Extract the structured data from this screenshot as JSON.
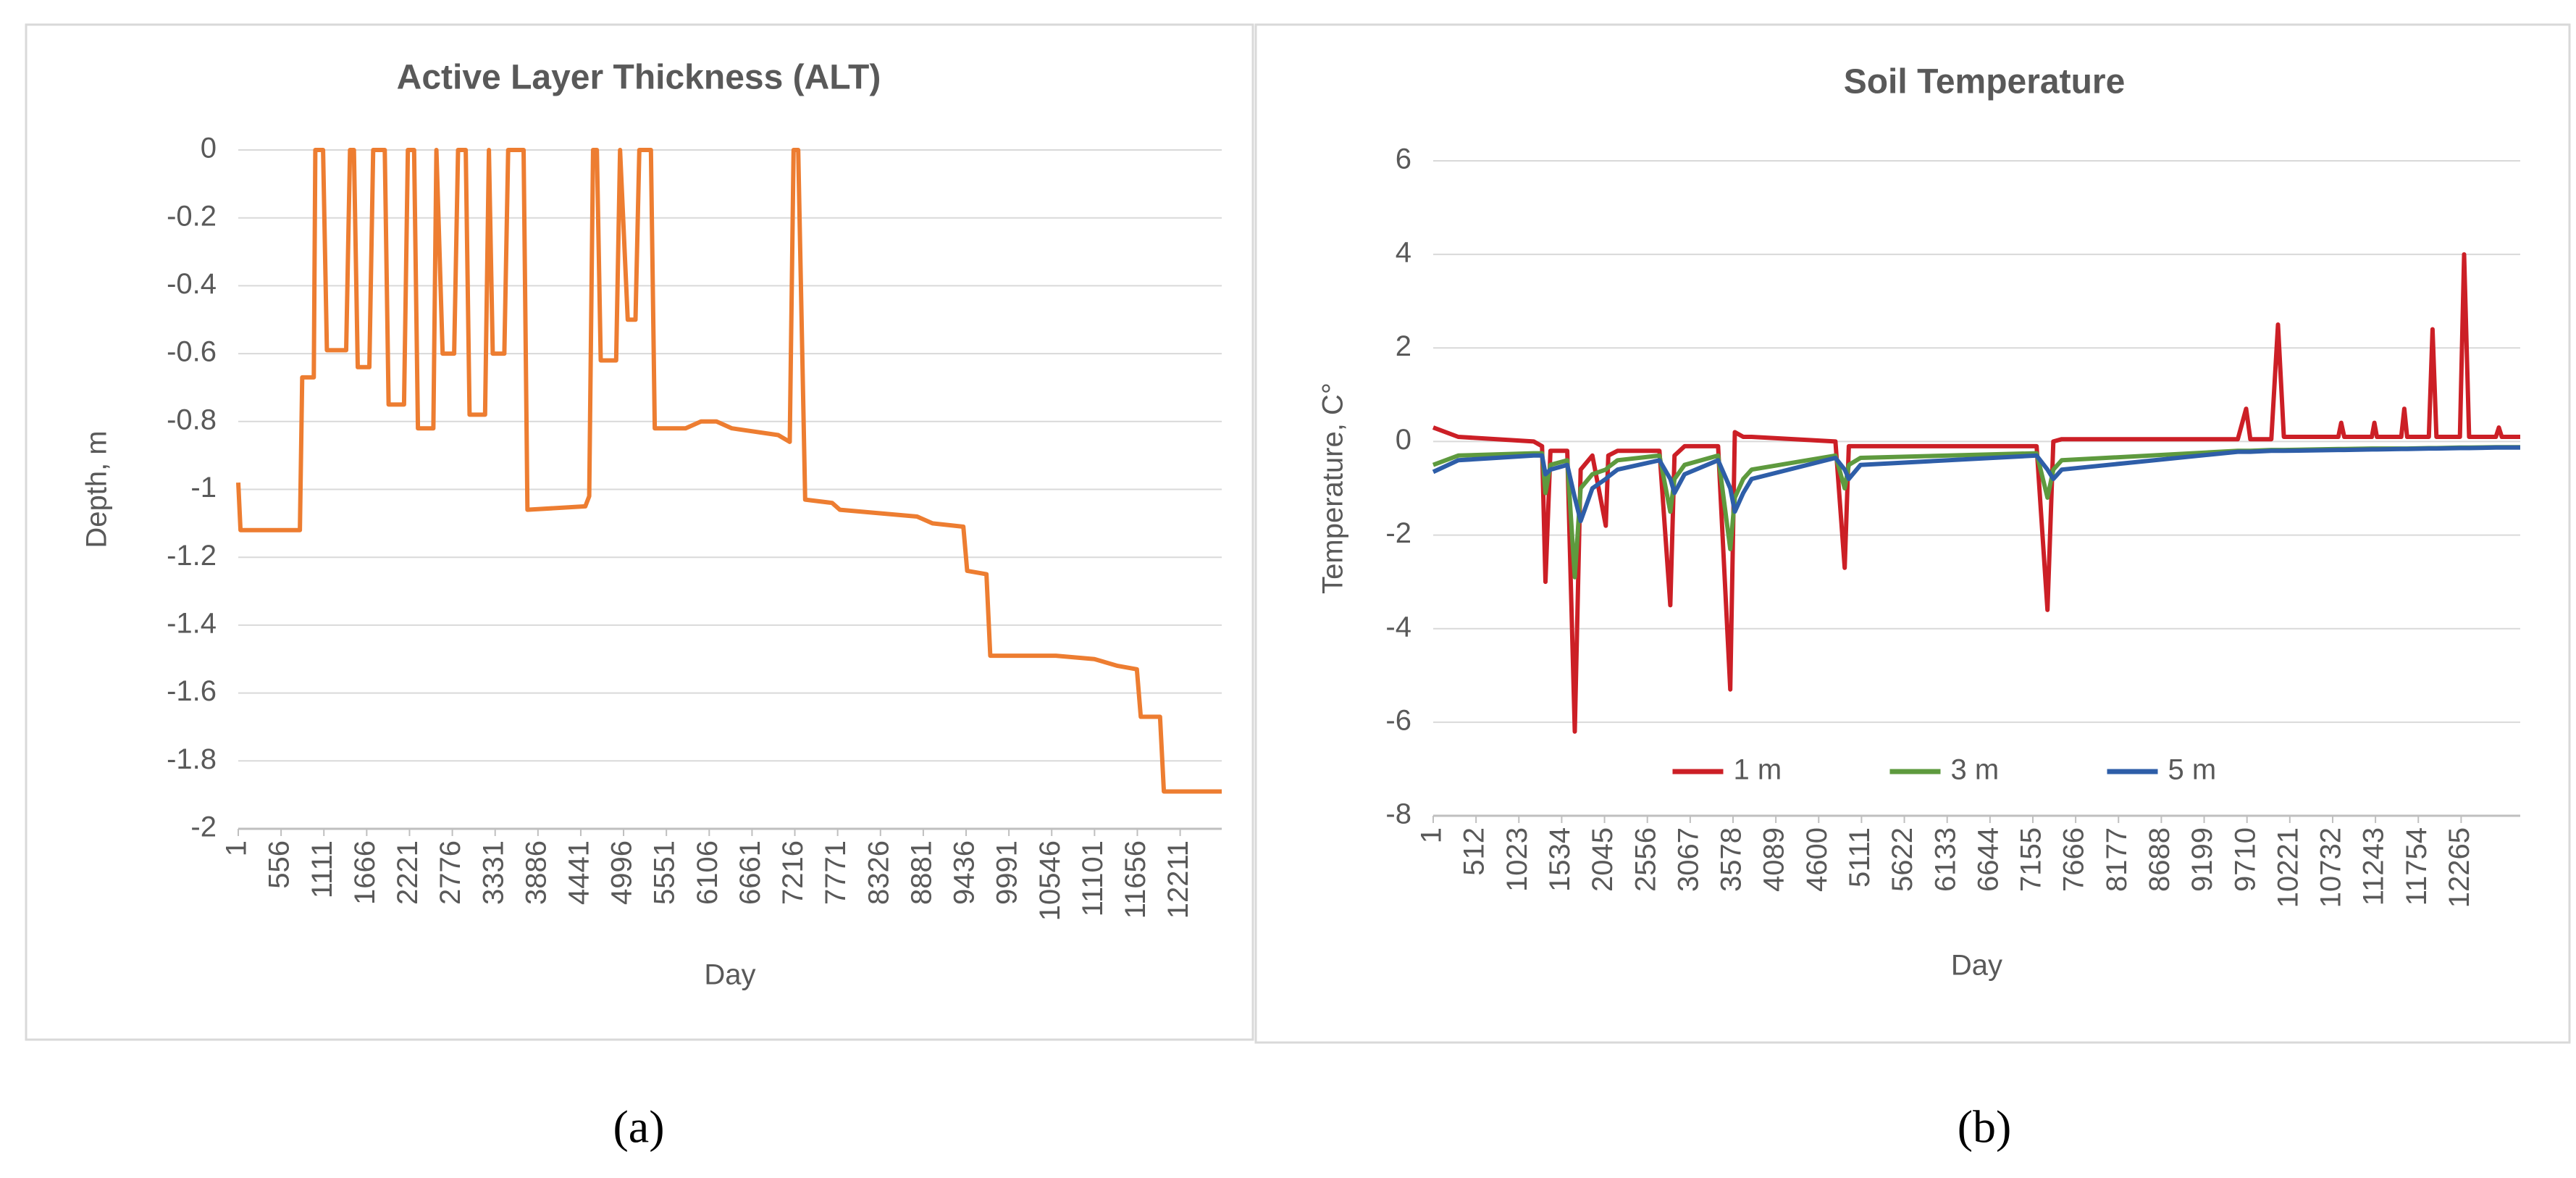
{
  "chart_data": [
    {
      "type": "line",
      "title": "Active Layer Thickness (ALT)",
      "caption": "(a)",
      "x_label": "Day",
      "y_label": "Depth, m",
      "x": [
        1,
        30,
        800,
        830,
        980,
        1000,
        1100,
        1150,
        1400,
        1450,
        1500,
        1550,
        1700,
        1750,
        1900,
        1950,
        2150,
        2200,
        2280,
        2330,
        2530,
        2570,
        2650,
        2800,
        2850,
        2950,
        3000,
        3200,
        3250,
        3300,
        3450,
        3500,
        3700,
        3750,
        4500,
        4550,
        4600,
        4650,
        4700,
        4900,
        4950,
        5050,
        5150,
        5200,
        5350,
        5400,
        5800,
        6000,
        6200,
        6400,
        7000,
        7150,
        7200,
        7260,
        7350,
        7700,
        7800,
        8800,
        9000,
        9400,
        9450,
        9700,
        9750,
        10600,
        11100,
        11400,
        11650,
        11700,
        11950,
        12000,
        12750
      ],
      "values": [
        -0.98,
        -1.12,
        -1.12,
        -0.67,
        -0.67,
        0,
        0,
        -0.59,
        -0.59,
        0,
        0,
        -0.64,
        -0.64,
        0,
        0,
        -0.75,
        -0.75,
        0,
        0,
        -0.82,
        -0.82,
        0,
        -0.6,
        -0.6,
        0,
        0,
        -0.78,
        -0.78,
        0,
        -0.6,
        -0.6,
        0,
        0,
        -1.06,
        -1.05,
        -1.02,
        0,
        0,
        -0.62,
        -0.62,
        0,
        -0.5,
        -0.5,
        0,
        0,
        -0.82,
        -0.82,
        -0.8,
        -0.8,
        -0.82,
        -0.84,
        -0.86,
        0,
        0,
        -1.03,
        -1.04,
        -1.06,
        -1.08,
        -1.1,
        -1.11,
        -1.24,
        -1.25,
        -1.49,
        -1.49,
        -1.5,
        -1.52,
        -1.53,
        -1.67,
        -1.67,
        -1.89,
        -1.89
      ],
      "color": "#ed7d31",
      "xlim": [
        1,
        12750
      ],
      "xticks": [
        1,
        556,
        1111,
        1666,
        2221,
        2776,
        3331,
        3886,
        4441,
        4996,
        5551,
        6106,
        6661,
        7216,
        7771,
        8326,
        8881,
        9436,
        9991,
        10546,
        11101,
        11656,
        12211
      ],
      "ylim": [
        -2,
        0
      ],
      "yticks": [
        0,
        -0.2,
        -0.4,
        -0.6,
        -0.8,
        -1,
        -1.2,
        -1.4,
        -1.6,
        -1.8,
        -2
      ],
      "grid": true
    },
    {
      "type": "line",
      "title": "Soil Temperature",
      "caption": "(b)",
      "x_label": "Day",
      "y_label": "Temperature, C°",
      "x": [
        1,
        300,
        1200,
        1300,
        1340,
        1400,
        1600,
        1690,
        1760,
        1900,
        2060,
        2090,
        2200,
        2700,
        2830,
        2880,
        3000,
        3400,
        3545,
        3600,
        3700,
        3800,
        4800,
        4910,
        4960,
        5100,
        7200,
        7330,
        7400,
        7500,
        9600,
        9700,
        9750,
        10000,
        10080,
        10150,
        10800,
        10834,
        10870,
        11200,
        11230,
        11260,
        11550,
        11587,
        11620,
        11880,
        11924,
        11970,
        12250,
        12300,
        12360,
        12680,
        12715,
        12750,
        12970
      ],
      "series": [
        {
          "name": "1 m",
          "color": "#cc1f26",
          "values": [
            0.3,
            0.1,
            0,
            -0.1,
            -3,
            -0.2,
            -0.2,
            -6.2,
            -0.6,
            -0.3,
            -1.8,
            -0.3,
            -0.2,
            -0.2,
            -3.5,
            -0.3,
            -0.1,
            -0.1,
            -5.3,
            0.2,
            0.1,
            0.1,
            0,
            -2.7,
            -0.1,
            -0.1,
            -0.1,
            -3.6,
            0,
            0.05,
            0.05,
            0.7,
            0.05,
            0.05,
            2.5,
            0.1,
            0.1,
            0.4,
            0.1,
            0.1,
            0.4,
            0.1,
            0.1,
            0.7,
            0.1,
            0.1,
            2.4,
            0.1,
            0.1,
            4,
            0.1,
            0.1,
            0.3,
            0.1,
            0.1
          ]
        },
        {
          "name": "3 m",
          "color": "#5e9a3e",
          "values": [
            -0.5,
            -0.3,
            -0.25,
            -0.25,
            -1.1,
            -0.5,
            -0.4,
            -2.9,
            -1,
            -0.7,
            -0.6,
            -0.55,
            -0.4,
            -0.3,
            -1.5,
            -0.8,
            -0.5,
            -0.3,
            -2.3,
            -1.2,
            -0.8,
            -0.6,
            -0.3,
            -1,
            -0.5,
            -0.35,
            -0.25,
            -1.2,
            -0.6,
            -0.4,
            -0.2,
            -0.2,
            -0.2,
            -0.18,
            -0.18,
            -0.18,
            -0.16,
            -0.16,
            -0.16,
            -0.15,
            -0.15,
            -0.15,
            -0.15,
            -0.15,
            -0.15,
            -0.14,
            -0.14,
            -0.14,
            -0.13,
            -0.13,
            -0.13,
            -0.12,
            -0.12,
            -0.12,
            -0.12
          ]
        },
        {
          "name": "5 m",
          "color": "#2e5ea8",
          "values": [
            -0.65,
            -0.4,
            -0.3,
            -0.3,
            -0.7,
            -0.6,
            -0.5,
            -1.2,
            -1.7,
            -1,
            -0.8,
            -0.75,
            -0.6,
            -0.4,
            -0.8,
            -1.1,
            -0.7,
            -0.4,
            -1,
            -1.5,
            -1.1,
            -0.8,
            -0.35,
            -0.6,
            -0.8,
            -0.5,
            -0.3,
            -0.6,
            -0.8,
            -0.6,
            -0.22,
            -0.22,
            -0.22,
            -0.2,
            -0.2,
            -0.2,
            -0.18,
            -0.18,
            -0.18,
            -0.17,
            -0.17,
            -0.17,
            -0.16,
            -0.16,
            -0.16,
            -0.15,
            -0.15,
            -0.15,
            -0.14,
            -0.14,
            -0.14,
            -0.13,
            -0.13,
            -0.13,
            -0.13
          ]
        }
      ],
      "xlim": [
        1,
        12970
      ],
      "xticks": [
        1,
        512,
        1023,
        1534,
        2045,
        2556,
        3067,
        3578,
        4089,
        4600,
        5111,
        5622,
        6133,
        6644,
        7155,
        7666,
        8177,
        8688,
        9199,
        9710,
        10221,
        10732,
        11243,
        11754,
        12265
      ],
      "ylim": [
        -8,
        6
      ],
      "yticks": [
        6,
        4,
        2,
        0,
        -2,
        -4,
        -6,
        -8
      ],
      "grid": true,
      "legend": "bottom"
    }
  ]
}
